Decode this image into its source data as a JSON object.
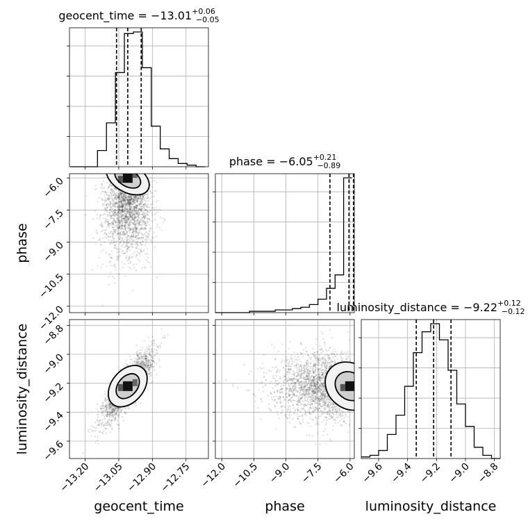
{
  "chart_data": {
    "type": "corner",
    "grid": true,
    "parameters": [
      {
        "name": "geocent_time",
        "median": -13.01,
        "plus": "+0.06",
        "minus": "−0.05",
        "q16": -13.06,
        "q84": -12.95,
        "range": [
          -13.27,
          -12.65
        ],
        "ticks": [
          "−13.20",
          "−13.05",
          "−12.90",
          "−12.75"
        ],
        "tick_values": [
          -13.2,
          -13.05,
          -12.9,
          -12.75
        ]
      },
      {
        "name": "phase",
        "median": -6.05,
        "plus": "+0.21",
        "minus": "−0.89",
        "q16": -6.94,
        "q84": -5.84,
        "range": [
          -12.3,
          -5.8
        ],
        "ticks": [
          "−12.0",
          "−10.5",
          "−9.0",
          "−7.5",
          "−6.0"
        ],
        "tick_values": [
          -12.0,
          -10.5,
          -9.0,
          -7.5,
          -6.0
        ]
      },
      {
        "name": "luminosity_distance",
        "median": -9.22,
        "plus": "+0.12",
        "minus": "−0.12",
        "q16": -9.34,
        "q84": -9.1,
        "range": [
          -9.72,
          -8.76
        ],
        "ticks": [
          "−9.6",
          "−9.4",
          "−9.2",
          "−9.0",
          "−8.8"
        ],
        "tick_values": [
          -9.6,
          -9.4,
          -9.2,
          -9.0,
          -8.8
        ]
      }
    ],
    "histograms": [
      {
        "param": "geocent_time",
        "bin_edges": [
          -13.265,
          -13.225,
          -13.185,
          -13.145,
          -13.105,
          -13.065,
          -13.025,
          -12.985,
          -12.945,
          -12.905,
          -12.865,
          -12.825,
          -12.785,
          -12.745,
          -12.705,
          -12.665
        ],
        "counts": [
          0,
          0,
          0,
          10,
          27,
          58,
          82,
          83,
          61,
          25,
          11,
          5,
          2,
          1,
          0
        ]
      },
      {
        "param": "phase",
        "bin_edges": [
          -12.3,
          -11.9,
          -11.5,
          -11.1,
          -10.7,
          -10.3,
          -9.9,
          -9.5,
          -9.1,
          -8.7,
          -8.3,
          -7.9,
          -7.5,
          -7.1,
          -6.7,
          -6.3,
          -5.9
        ],
        "counts": [
          0,
          0,
          0,
          0,
          1,
          1,
          1,
          2,
          2,
          3,
          4,
          6,
          10,
          18,
          28,
          100
        ]
      },
      {
        "param": "luminosity_distance",
        "bin_edges": [
          -9.72,
          -9.66,
          -9.6,
          -9.54,
          -9.48,
          -9.42,
          -9.36,
          -9.3,
          -9.24,
          -9.18,
          -9.12,
          -9.06,
          -9.0,
          -8.94,
          -8.88,
          -8.82,
          -8.76
        ],
        "counts": [
          1,
          2,
          5,
          15,
          27,
          45,
          66,
          79,
          84,
          74,
          55,
          34,
          20,
          7,
          2,
          0
        ]
      }
    ],
    "correlations": [
      {
        "x": "geocent_time",
        "y": "phase",
        "rho": -0.5
      },
      {
        "x": "geocent_time",
        "y": "luminosity_distance",
        "rho": 0.85
      },
      {
        "x": "phase",
        "y": "luminosity_distance",
        "rho": 0.1
      }
    ]
  }
}
